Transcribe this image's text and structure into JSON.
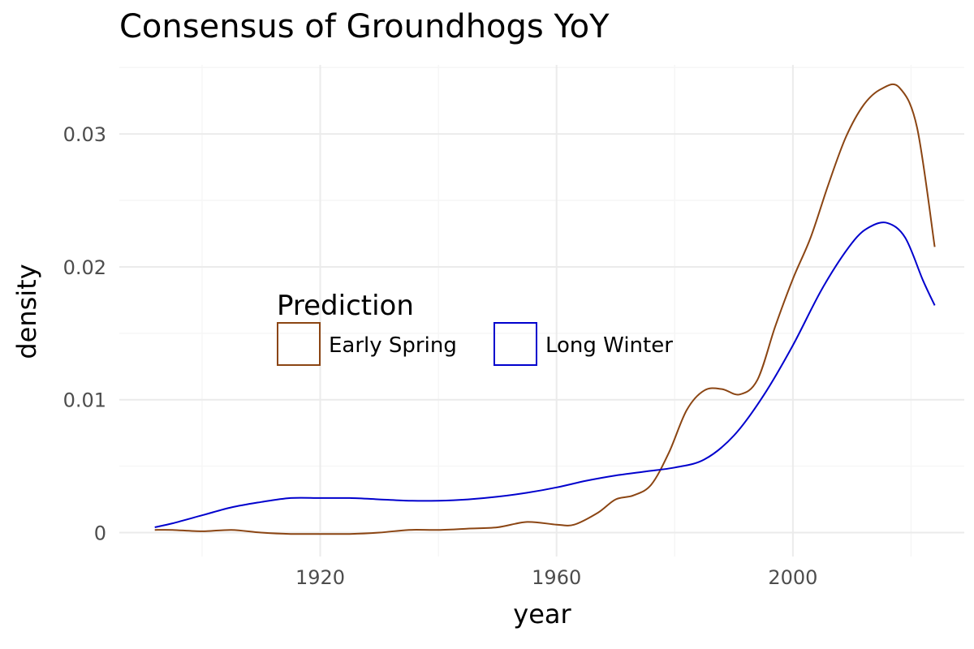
{
  "chart_data": {
    "type": "line",
    "title": "Consensus of Groundhogs YoY",
    "xlabel": "year",
    "ylabel": "density",
    "xlim": [
      1886,
      2029
    ],
    "ylim": [
      -0.0018,
      0.0352
    ],
    "x_ticks": [
      1920,
      1960,
      2000
    ],
    "x_tick_labels": [
      "1920",
      "1960",
      "2000"
    ],
    "y_ticks": [
      0,
      0.01,
      0.02,
      0.03
    ],
    "y_tick_labels": [
      "0",
      "0.01",
      "0.02",
      "0.03"
    ],
    "grid": true,
    "legend": {
      "title": "Prediction",
      "position": "inside-left"
    },
    "series": [
      {
        "name": "Early Spring",
        "color": "#8b4513",
        "points": [
          [
            1892,
            0.0002
          ],
          [
            1895,
            0.0002
          ],
          [
            1900,
            0.0001
          ],
          [
            1905,
            0.0002
          ],
          [
            1910,
            0.0
          ],
          [
            1915,
            -0.0001
          ],
          [
            1920,
            -0.0001
          ],
          [
            1925,
            -0.0001
          ],
          [
            1930,
            0.0
          ],
          [
            1935,
            0.0002
          ],
          [
            1940,
            0.0002
          ],
          [
            1945,
            0.0003
          ],
          [
            1950,
            0.0004
          ],
          [
            1955,
            0.0008
          ],
          [
            1960,
            0.0006
          ],
          [
            1963,
            0.0006
          ],
          [
            1967,
            0.0015
          ],
          [
            1970,
            0.0025
          ],
          [
            1973,
            0.0028
          ],
          [
            1976,
            0.0036
          ],
          [
            1979,
            0.006
          ],
          [
            1982,
            0.0092
          ],
          [
            1985,
            0.0107
          ],
          [
            1988,
            0.0108
          ],
          [
            1991,
            0.0104
          ],
          [
            1994,
            0.0115
          ],
          [
            1997,
            0.0155
          ],
          [
            2000,
            0.0191
          ],
          [
            2003,
            0.0222
          ],
          [
            2006,
            0.0262
          ],
          [
            2009,
            0.0298
          ],
          [
            2012,
            0.0322
          ],
          [
            2015,
            0.0334
          ],
          [
            2018,
            0.0335
          ],
          [
            2021,
            0.0305
          ],
          [
            2024,
            0.0215
          ]
        ]
      },
      {
        "name": "Long Winter",
        "color": "#0000cd",
        "points": [
          [
            1892,
            0.0004
          ],
          [
            1895,
            0.0007
          ],
          [
            1900,
            0.0013
          ],
          [
            1905,
            0.0019
          ],
          [
            1910,
            0.0023
          ],
          [
            1915,
            0.0026
          ],
          [
            1920,
            0.0026
          ],
          [
            1925,
            0.0026
          ],
          [
            1930,
            0.0025
          ],
          [
            1935,
            0.0024
          ],
          [
            1940,
            0.0024
          ],
          [
            1945,
            0.0025
          ],
          [
            1950,
            0.0027
          ],
          [
            1955,
            0.003
          ],
          [
            1960,
            0.0034
          ],
          [
            1965,
            0.0039
          ],
          [
            1970,
            0.0043
          ],
          [
            1975,
            0.0046
          ],
          [
            1980,
            0.0049
          ],
          [
            1985,
            0.0055
          ],
          [
            1990,
            0.0073
          ],
          [
            1995,
            0.0103
          ],
          [
            2000,
            0.0141
          ],
          [
            2005,
            0.0184
          ],
          [
            2010,
            0.0218
          ],
          [
            2013,
            0.023
          ],
          [
            2016,
            0.0233
          ],
          [
            2019,
            0.0222
          ],
          [
            2022,
            0.019
          ],
          [
            2024,
            0.0171
          ]
        ]
      }
    ]
  }
}
